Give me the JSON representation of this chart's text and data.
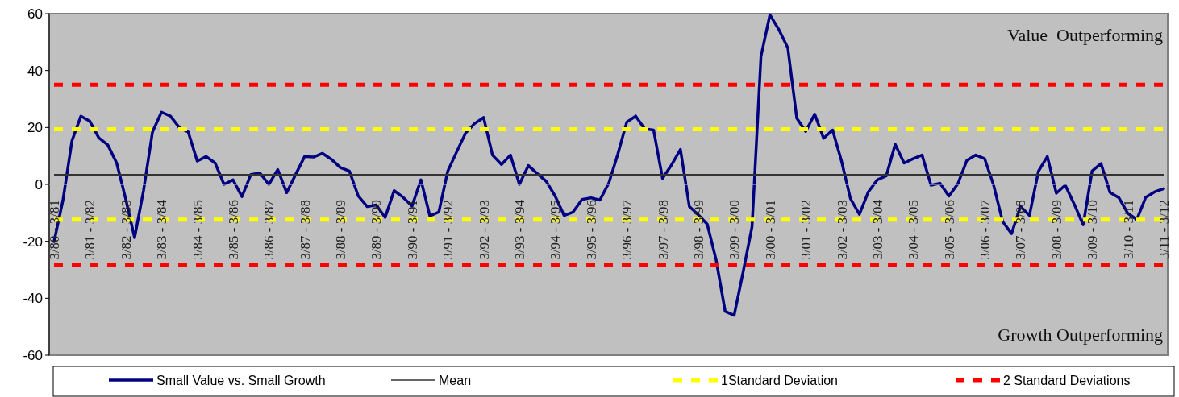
{
  "chart_data": {
    "type": "line",
    "annotations": [
      "Value  Outperforming",
      "Growth Outperforming"
    ],
    "categories": [
      "3/80 - 3/81",
      null,
      null,
      null,
      "3/81 - 3/82",
      null,
      null,
      null,
      "3/82 - 3/83",
      null,
      null,
      null,
      "3/83 - 3/84",
      null,
      null,
      null,
      "3/84 - 3/85",
      null,
      null,
      null,
      "3/85 - 3/86",
      null,
      null,
      null,
      "3/86 - 3/87",
      null,
      null,
      null,
      "3/87 - 3/88",
      null,
      null,
      null,
      "3/88 - 3/89",
      null,
      null,
      null,
      "3/89 - 3/90",
      null,
      null,
      null,
      "3/90 - 3/91",
      null,
      null,
      null,
      "3/91 - 3/92",
      null,
      null,
      null,
      "3/92 - 3/93",
      null,
      null,
      null,
      "3/93 - 3/94",
      null,
      null,
      null,
      "3/94 - 3/95",
      null,
      null,
      null,
      "3/95 - 3/96",
      null,
      null,
      null,
      "3/96 - 3/97",
      null,
      null,
      null,
      "3/97 - 3/98",
      null,
      null,
      null,
      "3/98 - 3/99",
      null,
      null,
      null,
      "3/99 - 3/00",
      null,
      null,
      null,
      "3/00 - 3/01",
      null,
      null,
      null,
      "3/01 - 3/02",
      null,
      null,
      null,
      "3/02 - 3/03",
      null,
      null,
      null,
      "3/03 - 3/04",
      null,
      null,
      null,
      "3/04 - 3/05",
      null,
      null,
      null,
      "3/05 - 3/06",
      null,
      null,
      null,
      "3/06 - 3/07",
      null,
      null,
      null,
      "3/07 - 3/08",
      null,
      null,
      null,
      "3/08 - 3/09",
      null,
      null,
      null,
      "3/09 - 3/10",
      null,
      null,
      null,
      "3/10 - 3/11",
      null,
      null,
      null,
      "3/11 - 3/12"
    ],
    "series": [
      {
        "name": "Small Value vs. Small Growth",
        "color": "#000080",
        "values": [
          -20.1,
          -5.5,
          15.3,
          24.0,
          22.2,
          16.4,
          13.9,
          7.5,
          -5.0,
          -18.7,
          -2.2,
          18.4,
          25.4,
          24.0,
          20.0,
          18.4,
          8.2,
          9.8,
          7.5,
          0,
          1.6,
          -4.3,
          3.5,
          4.0,
          0,
          5.2,
          -2.9,
          3.5,
          9.8,
          9.6,
          10.9,
          8.8,
          5.9,
          4.7,
          -4.1,
          -7.8,
          -7.2,
          -11.6,
          -2.2,
          -4.5,
          -7.6,
          1.6,
          -11.1,
          -9.7,
          4.7,
          11.5,
          18.1,
          21.4,
          23.5,
          10.3,
          7.0,
          10.3,
          0,
          6.6,
          3.8,
          1.1,
          -4.1,
          -10.9,
          -9.7,
          -5.3,
          -4.7,
          -5.5,
          0.5,
          10.6,
          21.9,
          24.0,
          19.5,
          19.1,
          2.1,
          6.8,
          12.3,
          -7.8,
          -10.7,
          -14.0,
          -26.7,
          -44.6,
          -46.0,
          -30.9,
          -14.9,
          45.0,
          59.6,
          54.4,
          48.0,
          23.3,
          18.6,
          24.7,
          16.2,
          19.1,
          8.2,
          -5.0,
          -10.5,
          -2.6,
          1.6,
          3.0,
          14.1,
          7.5,
          9.0,
          10.3,
          -0.3,
          0.4,
          -4.1,
          0.2,
          8.4,
          10.3,
          9.0,
          -0.3,
          -13.0,
          -17.3,
          -7.8,
          -10.9,
          4.6,
          9.8,
          -3.1,
          -0.3,
          -6.9,
          -14.2,
          4.7,
          7.3,
          -2.8,
          -4.7,
          -10.2,
          -12.3,
          -4.5,
          -2.6,
          -1.5
        ]
      }
    ],
    "ref_lines": [
      {
        "axis": "y",
        "value": 3.3,
        "label": "Mean",
        "color": "#333333",
        "line_style": "solid"
      },
      {
        "axis": "y",
        "value": 19.4,
        "label": "1Standard Deviation",
        "color": "#ffff00",
        "line_style": "dashed"
      },
      {
        "axis": "y",
        "value": -12.4,
        "label": null,
        "color": "#ffff00",
        "line_style": "dashed"
      },
      {
        "axis": "y",
        "value": 35.0,
        "label": "2 Standard Deviations",
        "color": "#ff0000",
        "line_style": "dashed"
      },
      {
        "axis": "y",
        "value": -28.3,
        "label": null,
        "color": "#ff0000",
        "line_style": "dashed"
      }
    ],
    "ylim": [
      -60,
      60
    ],
    "yticks": [
      -60,
      -40,
      -20,
      0,
      20,
      40,
      60
    ],
    "grid": false,
    "legend": "bottom",
    "marker": "none",
    "line_style": "solid"
  }
}
